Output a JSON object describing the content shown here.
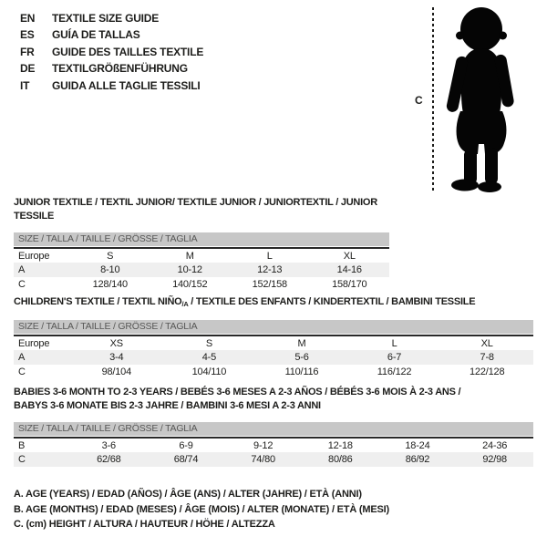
{
  "colors": {
    "text": "#1d1d1b",
    "bar_bg": "#c7c7c7",
    "bar_text": "#575756",
    "row_shaded": "#efefef",
    "silhouette": "#050505"
  },
  "languages": [
    {
      "code": "EN",
      "title": "TEXTILE SIZE GUIDE"
    },
    {
      "code": "ES",
      "title": "GUÍA DE TALLAS"
    },
    {
      "code": "FR",
      "title": "GUIDE DES TAILLES TEXTILE"
    },
    {
      "code": "DE",
      "title": "TEXTILGRÖßENFÜHRUNG"
    },
    {
      "code": "IT",
      "title": "GUIDA ALLE TAGLIE TESSILI"
    }
  ],
  "figure": {
    "label": "C"
  },
  "size_bar_label": "SIZE / TALLA / TAILLE / GRÖSSE / TAGLIA",
  "tables": [
    {
      "title_lines": [
        [
          {
            "text": "JUNIOR TEXTILE / TEXTIL JUNIOR/ TEXTILE JUNIOR / JUNIORTEXTIL / JUNIOR TESSILE",
            "sub": false
          }
        ]
      ],
      "header": [
        "Europe",
        "S",
        "M",
        "L",
        "XL"
      ],
      "rows": [
        {
          "label": "A",
          "shaded": true,
          "values": [
            "8-10",
            "10-12",
            "12-13",
            "14-16"
          ]
        },
        {
          "label": "C",
          "shaded": false,
          "values": [
            "128/140",
            "140/152",
            "152/158",
            "158/170"
          ]
        }
      ]
    },
    {
      "title_lines": [
        [
          {
            "text": "CHILDREN'S TEXTILE / TEXTIL NIÑO",
            "sub": false
          },
          {
            "text": "/A",
            "sub": true
          },
          {
            "text": " / TEXTILE DES ENFANTS / KINDERTEXTIL / BAMBINI TESSILE",
            "sub": false
          }
        ]
      ],
      "header": [
        "Europe",
        "XS",
        "S",
        "M",
        "L",
        "XL"
      ],
      "rows": [
        {
          "label": "A",
          "shaded": true,
          "values": [
            "3-4",
            "4-5",
            "5-6",
            "6-7",
            "7-8"
          ]
        },
        {
          "label": "C",
          "shaded": false,
          "values": [
            "98/104",
            "104/110",
            "110/116",
            "116/122",
            "122/128"
          ]
        }
      ]
    },
    {
      "title_lines": [
        [
          {
            "text": "BABIES 3-6 MONTH TO 2-3 YEARS / BEBÉS 3-6 MESES A 2-3 AÑOS / BÉBÉS 3-6 MOIS À 2-3 ANS /",
            "sub": false
          }
        ],
        [
          {
            "text": "BABYS 3-6 MONATE BIS 2-3 JAHRE / BAMBINI 3-6 MESI A 2-3 ANNI",
            "sub": false
          }
        ]
      ],
      "header": null,
      "rows": [
        {
          "label": "B",
          "shaded": false,
          "values": [
            "3-6",
            "6-9",
            "9-12",
            "12-18",
            "18-24",
            "24-36"
          ]
        },
        {
          "label": "C",
          "shaded": true,
          "values": [
            "62/68",
            "68/74",
            "74/80",
            "80/86",
            "86/92",
            "92/98"
          ]
        }
      ]
    }
  ],
  "legend": [
    "A. AGE (YEARS) / EDAD (AÑOS) / ÂGE (ANS) / ALTER (JAHRE) / ETÀ (ANNI)",
    "B. AGE (MONTHS) / EDAD (MESES) / ÂGE (MOIS) / ALTER (MONATE) / ETÀ (MESI)",
    "C. (cm) HEIGHT / ALTURA / HAUTEUR / HÖHE / ALTEZZA"
  ]
}
